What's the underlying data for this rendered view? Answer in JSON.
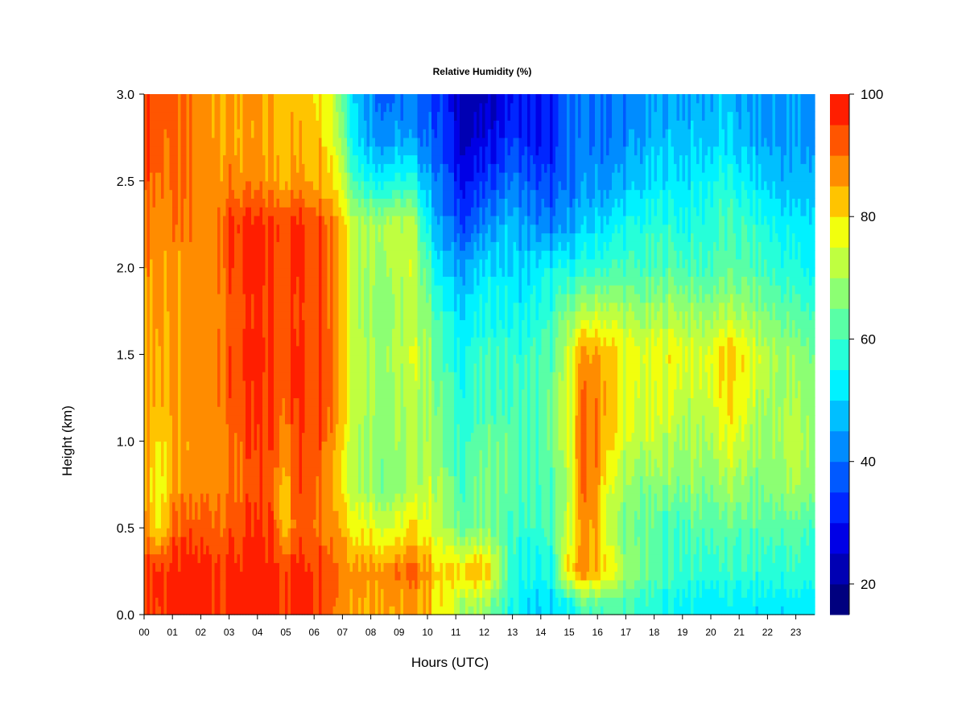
{
  "chart_data": {
    "type": "heatmap",
    "title": "Relative Humidity (%)",
    "xlabel": "Hours (UTC)",
    "ylabel": "Height (km)",
    "x_tick_labels": [
      "00",
      "01",
      "02",
      "03",
      "04",
      "05",
      "06",
      "07",
      "08",
      "09",
      "10",
      "11",
      "12",
      "13",
      "14",
      "15",
      "16",
      "17",
      "18",
      "19",
      "20",
      "21",
      "22",
      "23"
    ],
    "x_range_hours": [
      0,
      23.8
    ],
    "y_tick_labels": [
      "0.0",
      "0.5",
      "1.0",
      "1.5",
      "2.0",
      "2.5",
      "3.0"
    ],
    "y_ticks": [
      0.0,
      0.5,
      1.0,
      1.5,
      2.0,
      2.5,
      3.0
    ],
    "ylim": [
      0.0,
      3.0
    ],
    "height_levels_km": [
      0.05,
      0.25,
      0.5,
      0.75,
      1.0,
      1.25,
      1.5,
      1.75,
      2.0,
      2.25,
      2.5,
      2.75,
      2.95
    ],
    "hours": [
      0,
      0.5,
      1,
      1.5,
      2,
      2.5,
      3,
      3.5,
      4,
      4.5,
      5,
      5.5,
      6,
      6.5,
      7,
      7.5,
      8,
      8.5,
      9,
      9.5,
      10,
      10.5,
      11,
      11.5,
      12,
      12.5,
      13,
      13.5,
      14,
      14.5,
      15,
      15.5,
      16,
      16.5,
      17,
      17.5,
      18,
      18.5,
      19,
      19.5,
      20,
      20.5,
      21,
      21.5,
      22,
      22.5,
      23,
      23.8
    ],
    "rh_percent_by_height": [
      [
        97,
        95,
        97,
        97,
        97,
        97,
        97,
        97,
        97,
        97,
        97,
        97,
        97,
        95,
        88,
        87,
        86,
        87,
        84,
        86,
        85,
        78,
        72,
        70,
        68,
        64,
        55,
        52,
        50,
        50,
        52,
        60,
        62,
        62,
        60,
        58,
        56,
        55,
        54,
        53,
        52,
        52,
        52,
        52,
        52,
        52,
        52,
        52
      ],
      [
        97,
        97,
        97,
        97,
        97,
        97,
        97,
        97,
        97,
        97,
        97,
        97,
        97,
        96,
        90,
        88,
        88,
        88,
        89,
        90,
        88,
        80,
        82,
        84,
        82,
        76,
        58,
        55,
        54,
        55,
        80,
        86,
        85,
        80,
        70,
        66,
        62,
        60,
        60,
        58,
        58,
        58,
        58,
        58,
        58,
        58,
        58,
        58
      ],
      [
        90,
        78,
        90,
        92,
        92,
        92,
        92,
        94,
        95,
        95,
        84,
        92,
        92,
        90,
        86,
        78,
        78,
        75,
        76,
        80,
        78,
        72,
        66,
        64,
        66,
        66,
        60,
        58,
        58,
        60,
        72,
        86,
        86,
        74,
        66,
        64,
        62,
        60,
        60,
        62,
        62,
        62,
        62,
        62,
        62,
        62,
        62,
        60
      ],
      [
        88,
        76,
        85,
        86,
        87,
        89,
        90,
        91,
        92,
        93,
        84,
        93,
        93,
        90,
        80,
        72,
        70,
        66,
        66,
        70,
        74,
        70,
        62,
        62,
        64,
        64,
        62,
        60,
        60,
        62,
        70,
        88,
        88,
        76,
        70,
        66,
        66,
        68,
        66,
        68,
        66,
        68,
        70,
        66,
        66,
        68,
        70,
        68
      ],
      [
        88,
        80,
        84,
        85,
        87,
        88,
        90,
        92,
        94,
        94,
        90,
        95,
        95,
        92,
        82,
        72,
        70,
        68,
        68,
        70,
        72,
        66,
        60,
        60,
        62,
        64,
        62,
        60,
        62,
        64,
        72,
        90,
        90,
        82,
        74,
        72,
        72,
        72,
        70,
        70,
        70,
        74,
        76,
        70,
        68,
        70,
        72,
        70
      ],
      [
        88,
        84,
        86,
        87,
        88,
        90,
        92,
        94,
        95,
        95,
        92,
        96,
        96,
        94,
        84,
        74,
        72,
        70,
        68,
        72,
        72,
        64,
        58,
        58,
        60,
        62,
        60,
        60,
        62,
        64,
        72,
        88,
        88,
        84,
        78,
        74,
        74,
        76,
        74,
        72,
        74,
        78,
        80,
        74,
        70,
        70,
        70,
        68
      ],
      [
        87,
        85,
        86,
        87,
        88,
        90,
        92,
        95,
        96,
        95,
        93,
        96,
        96,
        94,
        84,
        74,
        72,
        70,
        72,
        74,
        72,
        62,
        56,
        56,
        58,
        60,
        58,
        58,
        60,
        62,
        72,
        86,
        86,
        84,
        78,
        76,
        76,
        78,
        78,
        74,
        76,
        80,
        82,
        76,
        72,
        70,
        68,
        66
      ],
      [
        87,
        86,
        86,
        87,
        88,
        89,
        91,
        94,
        95,
        95,
        93,
        95,
        95,
        93,
        84,
        72,
        70,
        68,
        70,
        72,
        68,
        58,
        52,
        52,
        54,
        56,
        54,
        54,
        56,
        58,
        66,
        70,
        72,
        72,
        70,
        68,
        68,
        70,
        70,
        68,
        68,
        70,
        70,
        68,
        66,
        64,
        62,
        60
      ],
      [
        88,
        87,
        86,
        86,
        88,
        90,
        93,
        95,
        96,
        95,
        93,
        96,
        96,
        93,
        84,
        72,
        72,
        70,
        72,
        74,
        64,
        50,
        46,
        46,
        50,
        52,
        50,
        50,
        52,
        54,
        54,
        56,
        58,
        60,
        60,
        60,
        60,
        62,
        62,
        60,
        60,
        62,
        62,
        62,
        60,
        58,
        56,
        54
      ],
      [
        90,
        88,
        88,
        88,
        88,
        90,
        95,
        96,
        96,
        96,
        95,
        96,
        96,
        93,
        84,
        72,
        72,
        72,
        72,
        72,
        56,
        44,
        38,
        36,
        40,
        46,
        48,
        44,
        42,
        40,
        44,
        48,
        50,
        52,
        54,
        56,
        56,
        58,
        56,
        56,
        58,
        60,
        60,
        58,
        56,
        54,
        52,
        52
      ],
      [
        94,
        90,
        90,
        88,
        88,
        88,
        88,
        87,
        87,
        86,
        86,
        86,
        86,
        84,
        76,
        60,
        56,
        54,
        56,
        56,
        48,
        40,
        32,
        30,
        32,
        36,
        40,
        38,
        36,
        34,
        40,
        42,
        44,
        44,
        46,
        48,
        50,
        52,
        52,
        52,
        54,
        56,
        54,
        52,
        50,
        48,
        46,
        48
      ],
      [
        96,
        93,
        90,
        88,
        88,
        87,
        86,
        85,
        85,
        84,
        84,
        84,
        84,
        82,
        70,
        52,
        46,
        44,
        44,
        44,
        40,
        36,
        28,
        24,
        26,
        30,
        34,
        32,
        28,
        30,
        38,
        40,
        40,
        40,
        42,
        44,
        46,
        48,
        48,
        48,
        48,
        50,
        48,
        46,
        44,
        44,
        44,
        44
      ],
      [
        96,
        94,
        92,
        90,
        88,
        87,
        86,
        86,
        85,
        84,
        84,
        82,
        82,
        80,
        66,
        50,
        44,
        40,
        40,
        40,
        38,
        34,
        26,
        22,
        22,
        26,
        30,
        30,
        28,
        30,
        38,
        40,
        40,
        40,
        42,
        42,
        44,
        46,
        46,
        46,
        46,
        48,
        46,
        44,
        44,
        44,
        44,
        44
      ]
    ],
    "colorbar": {
      "min": 15,
      "max": 100,
      "tick_labels": [
        "100",
        "80",
        "60",
        "40",
        "20"
      ],
      "ticks": [
        100,
        80,
        60,
        40,
        20
      ],
      "levels": [
        15,
        20,
        25,
        30,
        35,
        40,
        45,
        50,
        55,
        60,
        65,
        70,
        75,
        80,
        85,
        90,
        95,
        100
      ],
      "colors": [
        "#00007f",
        "#0000b3",
        "#0000e6",
        "#0026ff",
        "#0059ff",
        "#008cff",
        "#00bfff",
        "#00f2ff",
        "#26ffd9",
        "#59ffa6",
        "#8cff73",
        "#bfff40",
        "#f2ff0d",
        "#ffc400",
        "#ff8c00",
        "#ff5500",
        "#ff1e00",
        "#e60000",
        "#b30000",
        "#7f0000"
      ]
    }
  }
}
